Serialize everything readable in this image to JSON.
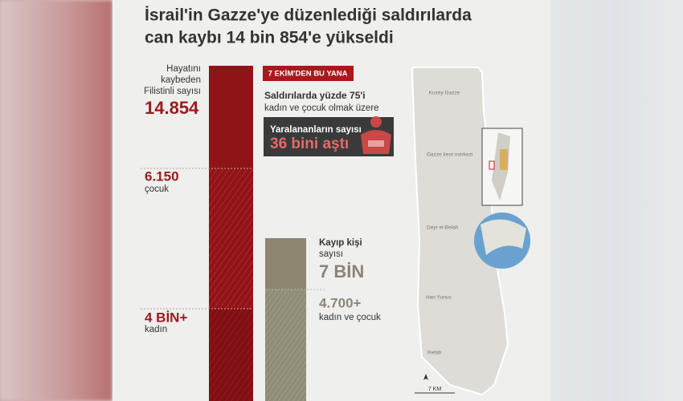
{
  "header": {
    "title": [
      "İsrail'in Gazze'ye düzenlediği saldırılarda",
      "can kaybı 14 bin 854'e yükseldi"
    ]
  },
  "killed": {
    "label": [
      "Hayatını",
      "kaybeden",
      "Filistinli sayısı"
    ],
    "total": "14.854",
    "children": {
      "value": "6.150",
      "label": "çocuk"
    },
    "women": {
      "value": "4 BİN+",
      "label": "kadın"
    }
  },
  "badge": "7 EKİM'DEN  BU YANA",
  "note": [
    "Saldırılarda yüzde 75'i",
    "kadın ve çocuk olmak üzere"
  ],
  "injured": {
    "label": "Yaralananların sayısı",
    "value": "36 bini aştı"
  },
  "missing": {
    "label": [
      "Kayıp kişi",
      "sayısı"
    ],
    "value": "7 BİN",
    "subvalue": "4.700+",
    "sublabel": "kadın ve çocuk"
  },
  "map": {
    "places": [
      "Kuzey Gazze",
      "Gazze kent merkezi",
      "Deyr el-Belah",
      "Han Yunus",
      "Refah"
    ],
    "scale": "7 KM"
  }
}
